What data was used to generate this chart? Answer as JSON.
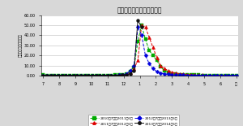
{
  "title": "インフルエンザ（埼玉県）",
  "ylabel": "報告数（クリニック）",
  "background": "#d8d8d8",
  "plot_bg": "#ffffff",
  "ylim": [
    0,
    60
  ],
  "ytick_vals": [
    0,
    10,
    20,
    30,
    40,
    50,
    60
  ],
  "ytick_labels": [
    "0.00",
    "10.00",
    "20.00",
    "30.00",
    "40.00",
    "50.00",
    "60.00"
  ],
  "xtick_labels": [
    "7",
    "8",
    "9",
    "10",
    "11",
    "12",
    "1",
    "2",
    "3",
    "4",
    "5",
    "6",
    "月"
  ],
  "series": [
    {
      "label": "2010年7月～2011年6月",
      "color": "#00aa00",
      "marker": "s",
      "markersize": 2.5,
      "linestyle": "--",
      "values": [
        0.5,
        0.3,
        0.3,
        0.3,
        0.3,
        0.3,
        0.3,
        0.3,
        0.3,
        0.3,
        0.3,
        0.3,
        0.3,
        0.3,
        0.3,
        0.3,
        0.3,
        0.3,
        0.4,
        0.5,
        0.7,
        1.0,
        2.0,
        4.0,
        8.0,
        34.0,
        50.0,
        36.0,
        25.0,
        20.0,
        15.0,
        9.0,
        5.0,
        3.0,
        2.0,
        1.5,
        1.2,
        1.0,
        0.8,
        0.7,
        0.6,
        0.5,
        0.4,
        0.4,
        0.3,
        0.3,
        0.3,
        0.2,
        0.2,
        0.2,
        0.2,
        0.2
      ]
    },
    {
      "label": "2011年7月～2012年6月",
      "color": "#dd0000",
      "marker": "^",
      "markersize": 3.0,
      "linestyle": "--",
      "values": [
        0.3,
        0.3,
        0.3,
        0.3,
        0.3,
        0.3,
        0.3,
        0.3,
        0.3,
        0.3,
        0.3,
        0.3,
        0.3,
        0.3,
        0.3,
        0.3,
        0.3,
        0.3,
        0.3,
        0.4,
        0.5,
        0.7,
        1.5,
        3.0,
        7.0,
        15.0,
        50.0,
        48.0,
        38.0,
        28.0,
        18.0,
        10.0,
        7.0,
        5.0,
        3.5,
        2.5,
        2.0,
        1.5,
        1.2,
        1.0,
        0.8,
        0.6,
        0.5,
        0.4,
        0.3,
        0.3,
        0.3,
        0.2,
        0.2,
        0.2,
        0.2,
        0.2
      ]
    },
    {
      "label": "2012年7月～2013年6月",
      "color": "#0000dd",
      "marker": "D",
      "markersize": 2.5,
      "linestyle": "--",
      "values": [
        0.3,
        0.3,
        0.3,
        0.3,
        0.3,
        0.3,
        0.3,
        0.3,
        0.3,
        0.3,
        0.3,
        0.3,
        0.3,
        0.3,
        0.3,
        0.3,
        0.3,
        0.3,
        0.3,
        0.4,
        0.5,
        0.8,
        2.0,
        5.0,
        10.0,
        48.0,
        40.0,
        20.0,
        12.0,
        7.0,
        4.0,
        2.5,
        1.8,
        1.3,
        1.0,
        0.8,
        0.6,
        0.5,
        0.4,
        0.3,
        0.3,
        0.3,
        0.2,
        0.2,
        0.2,
        0.2,
        0.2,
        0.2,
        0.2,
        0.2,
        0.2,
        0.2
      ]
    },
    {
      "label": "2013年7月～2014年6月",
      "color": "#111111",
      "marker": "o",
      "markersize": 2.8,
      "linestyle": "-",
      "values": [
        0.3,
        0.3,
        0.3,
        0.3,
        0.3,
        0.3,
        0.3,
        0.3,
        0.3,
        0.3,
        0.3,
        0.3,
        0.3,
        0.3,
        0.3,
        0.3,
        0.3,
        0.3,
        0.3,
        0.3,
        0.4,
        0.5,
        0.8,
        2.0,
        5.0,
        55.0,
        48.0,
        null,
        null,
        null,
        null,
        null,
        null,
        null,
        null,
        null,
        null,
        null,
        null,
        null,
        null,
        null,
        null,
        null,
        null,
        null,
        null,
        null,
        null,
        null,
        null,
        null
      ]
    }
  ],
  "legend_labels": [
    "2010年7月～2011年6月",
    "2011年7月～2012年6月",
    "2012年7月～2013年6月",
    "2013年7月～2014年6月"
  ],
  "legend_colors": [
    "#00aa00",
    "#dd0000",
    "#0000dd",
    "#111111"
  ],
  "legend_markers": [
    "s",
    "^",
    "D",
    "o"
  ],
  "legend_lstyles": [
    "--",
    "--",
    "--",
    "-"
  ]
}
